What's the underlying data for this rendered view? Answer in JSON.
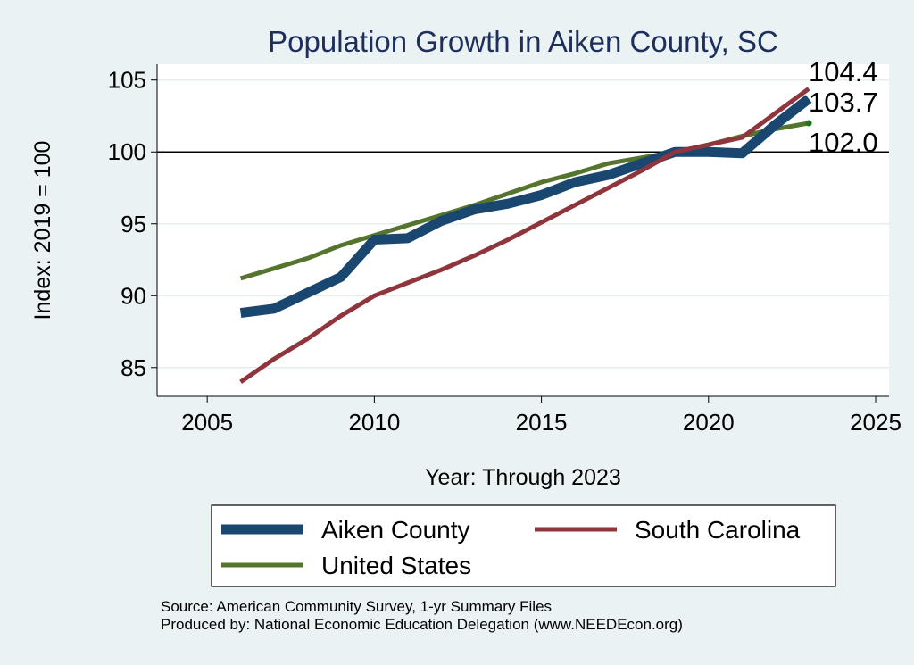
{
  "chart_data": {
    "type": "line",
    "title": "Population Growth in Aiken County, SC",
    "xlabel": "Year: Through 2023",
    "ylabel": "Index: 2019 = 100",
    "xlim": [
      2003.5,
      2025.4
    ],
    "ylim": [
      83.0,
      106.1
    ],
    "x_ticks": [
      2005,
      2010,
      2015,
      2020,
      2025
    ],
    "y_ticks": [
      85,
      90,
      95,
      100,
      105
    ],
    "reference_line": 100,
    "grid": true,
    "legend_position": "bottom",
    "x": [
      2006,
      2007,
      2008,
      2009,
      2010,
      2011,
      2012,
      2013,
      2014,
      2015,
      2016,
      2017,
      2018,
      2019,
      2020,
      2021,
      2022,
      2023
    ],
    "series": [
      {
        "name": "Aiken  County",
        "color": "#1a476f",
        "values": [
          88.8,
          89.1,
          90.2,
          91.3,
          93.9,
          94.0,
          95.2,
          96.0,
          96.4,
          97.0,
          97.9,
          98.4,
          99.2,
          100.0,
          100.0,
          99.9,
          101.9,
          103.7
        ],
        "end_label": "103.7"
      },
      {
        "name": "South Carolina",
        "color": "#90353b",
        "values": [
          84.0,
          85.6,
          87.0,
          88.6,
          90.0,
          90.9,
          91.8,
          92.8,
          93.9,
          95.1,
          96.3,
          97.5,
          98.7,
          100.0,
          100.5,
          101.0,
          102.7,
          104.4
        ],
        "end_label": "104.4"
      },
      {
        "name": "United States",
        "color": "#55752f",
        "values": [
          91.2,
          91.9,
          92.6,
          93.5,
          94.2,
          94.9,
          95.6,
          96.3,
          97.1,
          97.9,
          98.5,
          99.2,
          99.6,
          100.0,
          100.5,
          101.1,
          101.6,
          102.0
        ],
        "end_label": "102.0"
      }
    ]
  },
  "notes": {
    "source": "Source: American Community Survey, 1-yr Summary Files",
    "produced_by": "Produced by: National Economic Education Delegation (www.NEEDEcon.org)"
  }
}
